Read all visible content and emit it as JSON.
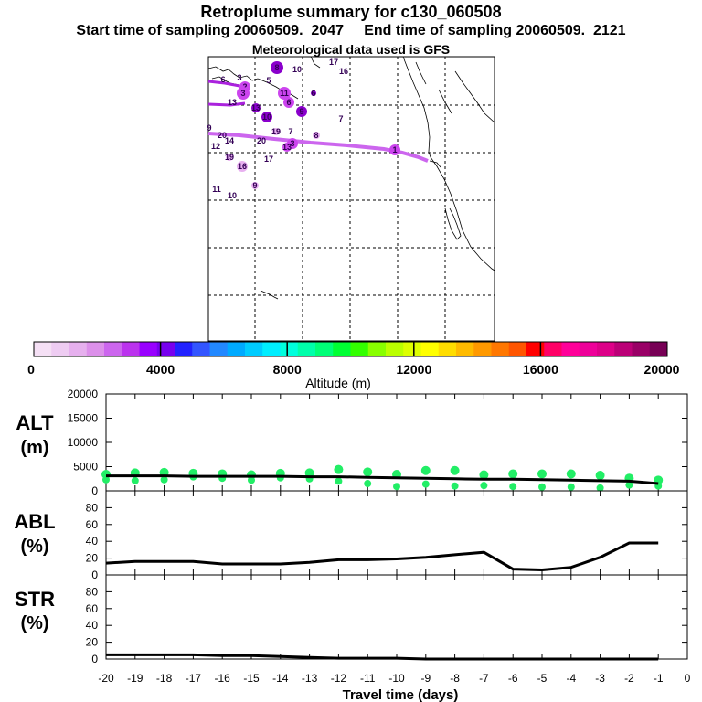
{
  "header": {
    "title": "Retroplume summary for c130_060508",
    "line2": "Start time of sampling 20060509.  2047     End time of sampling 20060509.  2121",
    "line3": "Meteorological data used is GFS"
  },
  "map": {
    "labels": [
      "1",
      "2",
      "3",
      "4",
      "5",
      "6",
      "7",
      "8",
      "9",
      "10",
      "11",
      "12",
      "13",
      "14",
      "15",
      "16",
      "17",
      "18",
      "19",
      "20"
    ],
    "colors": {
      "path": "#cc66ee",
      "dot_light": "#e8b0f0",
      "dot_mid": "#cc44ee",
      "dot_dark": "#8a00cc",
      "label": "#330055"
    }
  },
  "colorbar": {
    "ticks": [
      "0",
      "4000",
      "8000",
      "12000",
      "16000",
      "20000"
    ],
    "label": "Altitude (m)",
    "colors": [
      "#f5e0f5",
      "#eeccf2",
      "#e6b0ee",
      "#dc90ea",
      "#cc66ee",
      "#bb33ee",
      "#9900ff",
      "#7700ee",
      "#2222ff",
      "#3355ff",
      "#2288ff",
      "#00aaff",
      "#00ccff",
      "#00eeff",
      "#00ffdd",
      "#00ffaa",
      "#00ff77",
      "#00ff33",
      "#33ff00",
      "#88ff00",
      "#bbff00",
      "#ddff00",
      "#ffff00",
      "#ffdd00",
      "#ffbb00",
      "#ff9900",
      "#ff7700",
      "#ff5500",
      "#ff0000",
      "#ff0066",
      "#ff0099",
      "#ee0099",
      "#dd0088",
      "#bb0077",
      "#990066",
      "#770055"
    ]
  },
  "chart_data": [
    {
      "type": "scatter",
      "ylabel": "ALT",
      "yunit": "(m)",
      "ylim": [
        0,
        20000
      ],
      "yticks": [
        0,
        5000,
        10000,
        15000,
        20000
      ],
      "x": [
        -20,
        -19,
        -18,
        -17,
        -16,
        -15,
        -14,
        -13,
        -12,
        -11,
        -10,
        -9,
        -8,
        -7,
        -6,
        -5,
        -4,
        -3,
        -2,
        -1
      ],
      "points_high": [
        3400,
        3700,
        3800,
        3600,
        3500,
        3300,
        3600,
        3700,
        4400,
        3900,
        3400,
        4200,
        4200,
        3300,
        3500,
        3500,
        3500,
        3200,
        2600,
        2200
      ],
      "points_low": [
        2300,
        2100,
        2300,
        2900,
        2600,
        2200,
        2700,
        2500,
        2000,
        1500,
        900,
        1400,
        1000,
        1100,
        900,
        800,
        800,
        600,
        1200,
        1000
      ],
      "series": [
        {
          "name": "median altitude",
          "values": [
            3100,
            3100,
            3100,
            3000,
            3000,
            3000,
            3000,
            2900,
            2900,
            2800,
            2700,
            2600,
            2500,
            2400,
            2400,
            2300,
            2200,
            2100,
            2000,
            1500
          ]
        }
      ],
      "color": "#22ee66"
    },
    {
      "type": "line",
      "ylabel": "ABL",
      "yunit": "(%)",
      "ylim": [
        0,
        100
      ],
      "yticks": [
        0,
        20,
        40,
        60,
        80
      ],
      "x": [
        -20,
        -19,
        -18,
        -17,
        -16,
        -15,
        -14,
        -13,
        -12,
        -11,
        -10,
        -9,
        -8,
        -7,
        -6,
        -5,
        -4,
        -3,
        -2,
        -1
      ],
      "series": [
        {
          "name": "ABL",
          "values": [
            14,
            16,
            16,
            16,
            13,
            13,
            13,
            15,
            18,
            18,
            19,
            21,
            24,
            27,
            7,
            6,
            9,
            21,
            38,
            38
          ]
        }
      ]
    },
    {
      "type": "line",
      "ylabel": "STR",
      "yunit": "(%)",
      "ylim": [
        0,
        100
      ],
      "yticks": [
        0,
        20,
        40,
        60,
        80
      ],
      "x": [
        -20,
        -19,
        -18,
        -17,
        -16,
        -15,
        -14,
        -13,
        -12,
        -11,
        -10,
        -9,
        -8,
        -7,
        -6,
        -5,
        -4,
        -3,
        -2,
        -1
      ],
      "series": [
        {
          "name": "STR",
          "values": [
            5,
            5,
            5,
            5,
            4,
            4,
            3,
            2,
            1,
            1,
            1,
            0,
            0,
            0,
            0,
            0,
            0,
            0,
            0,
            0
          ]
        }
      ],
      "xlabel": "Travel time (days)",
      "xticks": [
        "-20",
        "-19",
        "-18",
        "-17",
        "-16",
        "-15",
        "-14",
        "-13",
        "-12",
        "-11",
        "-10",
        "-9",
        "-8",
        "-7",
        "-6",
        "-5",
        "-4",
        "-3",
        "-2",
        "-1",
        "0"
      ]
    }
  ]
}
